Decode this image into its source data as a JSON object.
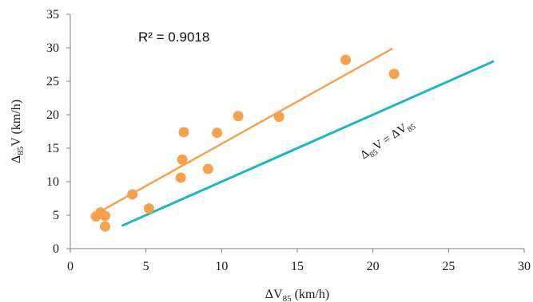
{
  "chart_data": {
    "type": "scatter",
    "title": "",
    "xlabel": {
      "base": "ΔV",
      "sub": "85",
      "unit": " (km/h)"
    },
    "ylabel": {
      "base": "Δ",
      "sub": "85",
      "after": "V (km/h)"
    },
    "xlim": [
      0,
      30
    ],
    "ylim": [
      0,
      35
    ],
    "x_ticks": [
      0,
      5,
      10,
      15,
      20,
      25,
      30
    ],
    "y_ticks": [
      0,
      5,
      10,
      15,
      20,
      25,
      30,
      35
    ],
    "grid": false,
    "legend": "none",
    "series": [
      {
        "kind": "points",
        "color": "#f7a24a",
        "points": [
          [
            1.7,
            4.8
          ],
          [
            2.0,
            5.4
          ],
          [
            2.3,
            4.9
          ],
          [
            2.3,
            3.3
          ],
          [
            4.1,
            8.1
          ],
          [
            5.2,
            6.0
          ],
          [
            7.3,
            10.6
          ],
          [
            7.4,
            13.3
          ],
          [
            7.5,
            17.4
          ],
          [
            9.1,
            11.9
          ],
          [
            9.7,
            17.3
          ],
          [
            11.1,
            19.8
          ],
          [
            13.8,
            19.7
          ],
          [
            18.2,
            28.2
          ],
          [
            21.4,
            26.1
          ]
        ]
      },
      {
        "kind": "trendline",
        "color": "#f7a24a",
        "from": [
          1.7,
          5.2
        ],
        "to": [
          21.3,
          29.9
        ]
      },
      {
        "kind": "line",
        "color": "#1ab7c7",
        "from": [
          3.4,
          3.4
        ],
        "to": [
          28.0,
          28.0
        ]
      }
    ],
    "annotations": {
      "r2": "R² = 0.9018",
      "equality_label": {
        "lhs_base": "Δ",
        "lhs_sub": "85",
        "lhs_after": "V = ΔV",
        "rhs_sub": "85"
      }
    }
  }
}
